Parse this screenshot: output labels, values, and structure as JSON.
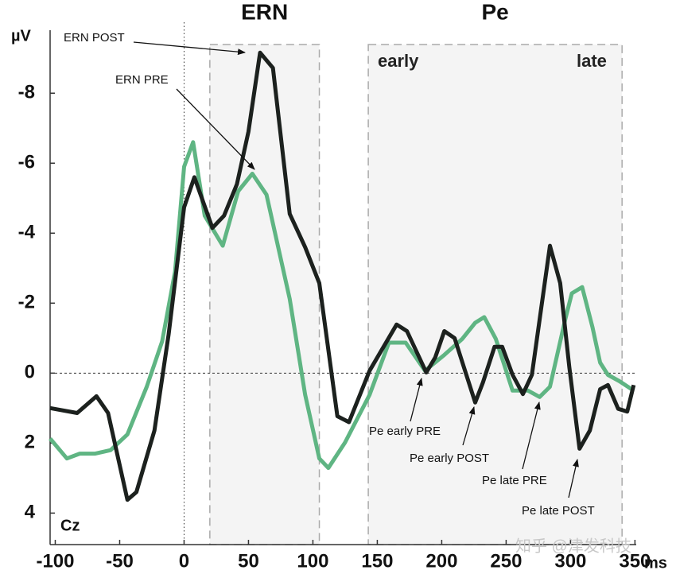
{
  "chart_data": {
    "type": "line",
    "x_axis_label": "ms",
    "y_axis_label": "µV",
    "xlim": [
      -104,
      351
    ],
    "ylim": [
      -9.8,
      4.9
    ],
    "y_inverted": true,
    "xticks": [
      -100,
      -50,
      0,
      50,
      100,
      150,
      200,
      250,
      300,
      350
    ],
    "yticks": [
      -8,
      -6,
      -4,
      -2,
      0,
      2,
      4
    ],
    "regions": [
      {
        "name": "ERN",
        "range": [
          20,
          105
        ]
      },
      {
        "name": "Pe",
        "range": [
          143,
          340
        ]
      }
    ],
    "annotations": [
      "early",
      "late",
      "ERN POST",
      "ERN PRE",
      "Pe early PRE",
      "Pe early POST",
      "Pe late PRE",
      "Pe late POST",
      "Cz",
      "知乎 @津发科技"
    ],
    "series": [
      {
        "name": "POST",
        "color": "#1c211e",
        "x": [
          -104,
          -83,
          -68,
          -59,
          -44,
          -37,
          -23,
          -12,
          0,
          8,
          22,
          31,
          41,
          50,
          59,
          69,
          82,
          94,
          105,
          119,
          128,
          144,
          165,
          173,
          188,
          195,
          202,
          210,
          226,
          232,
          241,
          247,
          255,
          263,
          270,
          284,
          292,
          299,
          307,
          315,
          323,
          329,
          337,
          344,
          349
        ],
        "values": [
          1.0,
          1.14,
          0.66,
          1.14,
          3.62,
          3.4,
          1.64,
          -1.1,
          -4.74,
          -5.6,
          -4.15,
          -4.5,
          -5.4,
          -6.9,
          -9.16,
          -8.72,
          -4.55,
          -3.6,
          -2.57,
          1.23,
          1.4,
          -0.07,
          -1.39,
          -1.2,
          -0.02,
          -0.45,
          -1.2,
          -1.0,
          0.84,
          0.27,
          -0.75,
          -0.75,
          0.05,
          0.6,
          0.05,
          -3.64,
          -2.57,
          -0.18,
          2.16,
          1.64,
          0.46,
          0.34,
          1.02,
          1.1,
          0.34
        ]
      },
      {
        "name": "PRE",
        "color": "#5fb583",
        "x": [
          -104,
          -91,
          -81,
          -69,
          -57,
          -44,
          -29,
          -17,
          -7,
          0,
          7,
          16,
          30,
          42,
          53,
          64,
          82,
          94,
          105,
          112,
          125,
          144,
          159,
          172,
          187,
          202,
          216,
          226,
          233,
          242,
          255,
          267,
          276,
          284,
          296,
          301,
          309,
          317,
          323,
          329,
          338,
          349
        ],
        "values": [
          1.87,
          2.44,
          2.3,
          2.3,
          2.2,
          1.75,
          0.39,
          -0.91,
          -2.9,
          -5.9,
          -6.6,
          -4.5,
          -3.64,
          -5.2,
          -5.7,
          -5.1,
          -2.12,
          0.62,
          2.44,
          2.71,
          1.98,
          0.62,
          -0.87,
          -0.87,
          -0.07,
          -0.52,
          -0.98,
          -1.44,
          -1.6,
          -0.98,
          0.5,
          0.5,
          0.68,
          0.39,
          -1.55,
          -2.28,
          -2.46,
          -1.32,
          -0.3,
          0.05,
          0.23,
          0.5
        ]
      }
    ]
  }
}
